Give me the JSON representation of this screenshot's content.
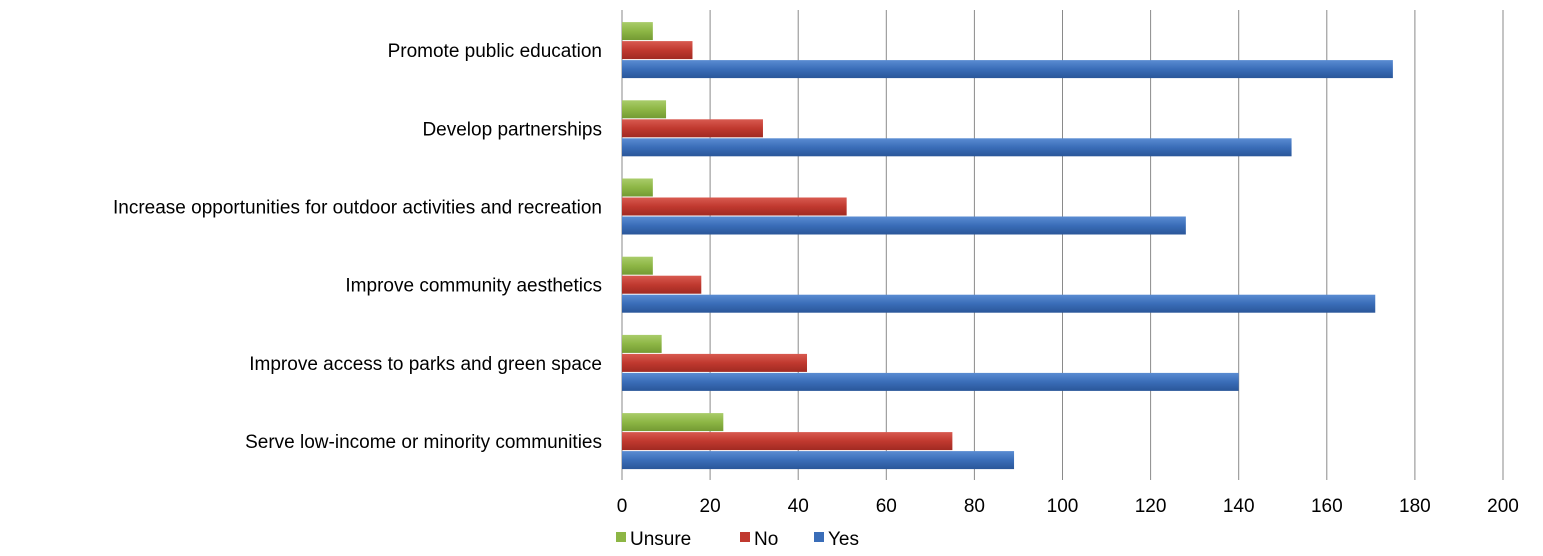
{
  "chart_data": {
    "type": "bar",
    "orientation": "horizontal",
    "title": "",
    "xlabel": "",
    "ylabel": "",
    "xlim": [
      0,
      200
    ],
    "x_ticks": [
      0,
      20,
      40,
      60,
      80,
      100,
      120,
      140,
      160,
      180,
      200
    ],
    "grid": "vertical",
    "legend_position": "bottom",
    "categories": [
      "Promote public education",
      "Develop partnerships",
      "Increase opportunities for outdoor activities and recreation",
      "Improve community aesthetics",
      "Improve access to parks and green space",
      "Serve low-income or minority communities"
    ],
    "series": [
      {
        "name": "Unsure",
        "color": "#8db645",
        "values": [
          7,
          10,
          7,
          7,
          9,
          23
        ]
      },
      {
        "name": "No",
        "color": "#c0392f",
        "values": [
          16,
          32,
          51,
          18,
          42,
          75
        ]
      },
      {
        "name": "Yes",
        "color": "#3a6db8",
        "values": [
          175,
          152,
          128,
          171,
          140,
          89
        ]
      }
    ]
  }
}
